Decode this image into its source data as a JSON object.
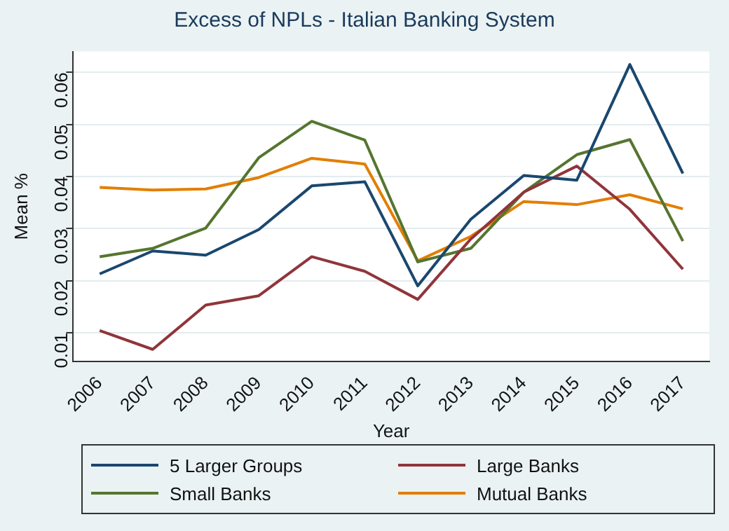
{
  "chart_data": {
    "type": "line",
    "title": "Excess of NPLs - Italian Banking System",
    "xlabel": "Year",
    "ylabel": "Mean %",
    "categories": [
      "2006",
      "2007",
      "2008",
      "2009",
      "2010",
      "2011",
      "2012",
      "2013",
      "2014",
      "2015",
      "2016",
      "2017"
    ],
    "series": [
      {
        "name": "5 Larger Groups",
        "color": "#1a476f",
        "values": [
          0.0213,
          0.0257,
          0.0249,
          0.0298,
          0.0382,
          0.039,
          0.019,
          0.0318,
          0.0402,
          0.0393,
          0.0615,
          0.0406
        ]
      },
      {
        "name": "Large Banks",
        "color": "#90353b",
        "values": [
          0.0104,
          0.0068,
          0.0153,
          0.0171,
          0.0246,
          0.0218,
          0.0164,
          0.028,
          0.037,
          0.042,
          0.0337,
          0.0222
        ]
      },
      {
        "name": "Small Banks",
        "color": "#55752f",
        "values": [
          0.0246,
          0.0262,
          0.0301,
          0.0436,
          0.0506,
          0.047,
          0.0236,
          0.0262,
          0.037,
          0.0442,
          0.0471,
          0.0276
        ]
      },
      {
        "name": "Mutual Banks",
        "color": "#e37e00",
        "values": [
          0.0379,
          0.0374,
          0.0376,
          0.0398,
          0.0435,
          0.0424,
          0.0238,
          0.0285,
          0.0352,
          0.0346,
          0.0365,
          0.0338
        ]
      }
    ],
    "ylim": [
      0.0045,
      0.064
    ],
    "yticks": [
      0.01,
      0.02,
      0.03,
      0.04,
      0.05,
      0.06
    ],
    "grid": "y",
    "legend": "bottom",
    "marker": "none",
    "line_style": "solid"
  }
}
